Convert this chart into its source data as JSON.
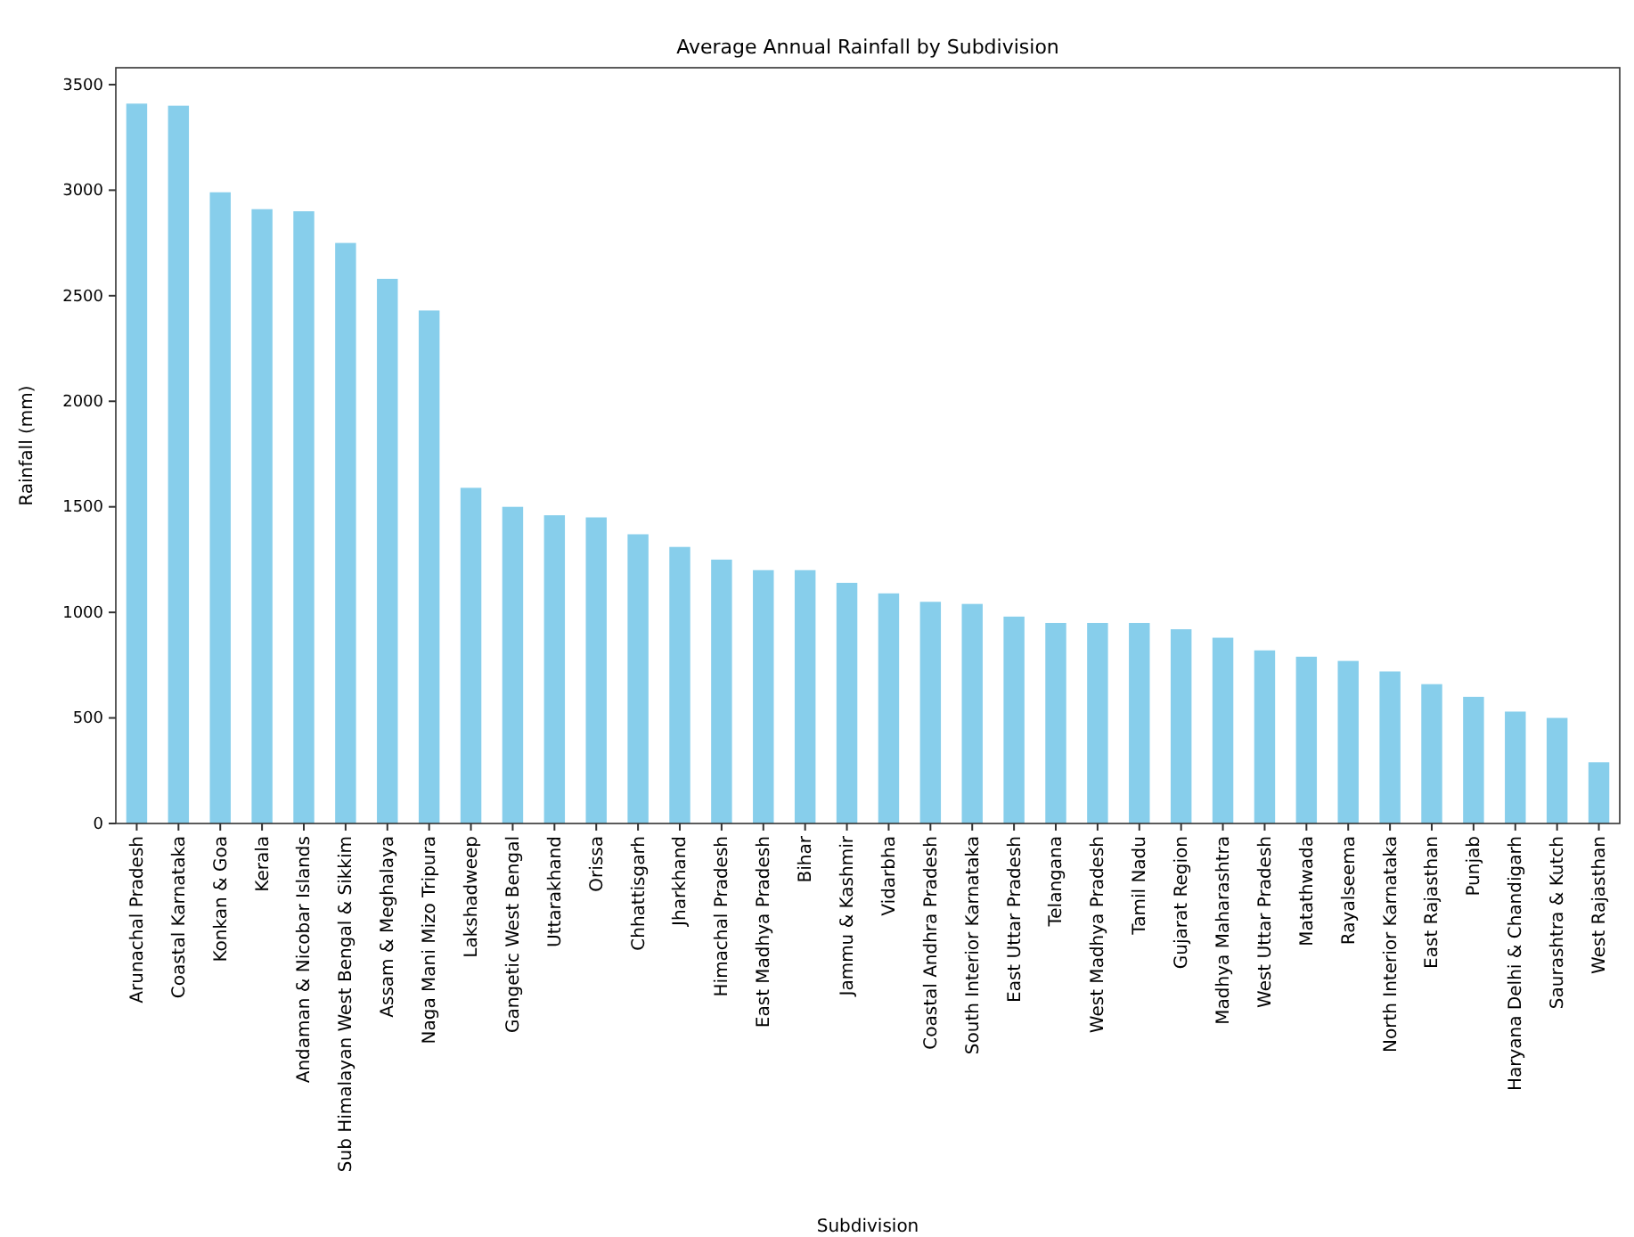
{
  "chart_data": {
    "type": "bar",
    "title": "Average Annual Rainfall by Subdivision",
    "xlabel": "Subdivision",
    "ylabel": "Rainfall (mm)",
    "categories": [
      "Arunachal Pradesh",
      "Coastal Karnataka",
      "Konkan & Goa",
      "Kerala",
      "Andaman & Nicobar Islands",
      "Sub Himalayan West Bengal & Sikkim",
      "Assam & Meghalaya",
      "Naga Mani Mizo Tripura",
      "Lakshadweep",
      "Gangetic West Bengal",
      "Uttarakhand",
      "Orissa",
      "Chhattisgarh",
      "Jharkhand",
      "Himachal Pradesh",
      "East Madhya Pradesh",
      "Bihar",
      "Jammu & Kashmir",
      "Vidarbha",
      "Coastal Andhra Pradesh",
      "South Interior Karnataka",
      "East Uttar Pradesh",
      "Telangana",
      "West Madhya Pradesh",
      "Tamil Nadu",
      "Gujarat Region",
      "Madhya Maharashtra",
      "West Uttar Pradesh",
      "Matathwada",
      "Rayalseema",
      "North Interior Karnataka",
      "East Rajasthan",
      "Punjab",
      "Haryana Delhi & Chandigarh",
      "Saurashtra & Kutch",
      "West Rajasthan"
    ],
    "values": [
      3410,
      3400,
      2990,
      2910,
      2900,
      2750,
      2580,
      2430,
      1590,
      1500,
      1460,
      1450,
      1370,
      1310,
      1250,
      1200,
      1200,
      1140,
      1090,
      1050,
      1040,
      980,
      950,
      950,
      950,
      920,
      880,
      820,
      790,
      770,
      720,
      660,
      600,
      530,
      500,
      290
    ],
    "color": "#87ceeb",
    "ylim": [
      0,
      3580
    ],
    "yticks": [
      0,
      500,
      1000,
      1500,
      2000,
      2500,
      3000,
      3500
    ],
    "grid": false
  }
}
